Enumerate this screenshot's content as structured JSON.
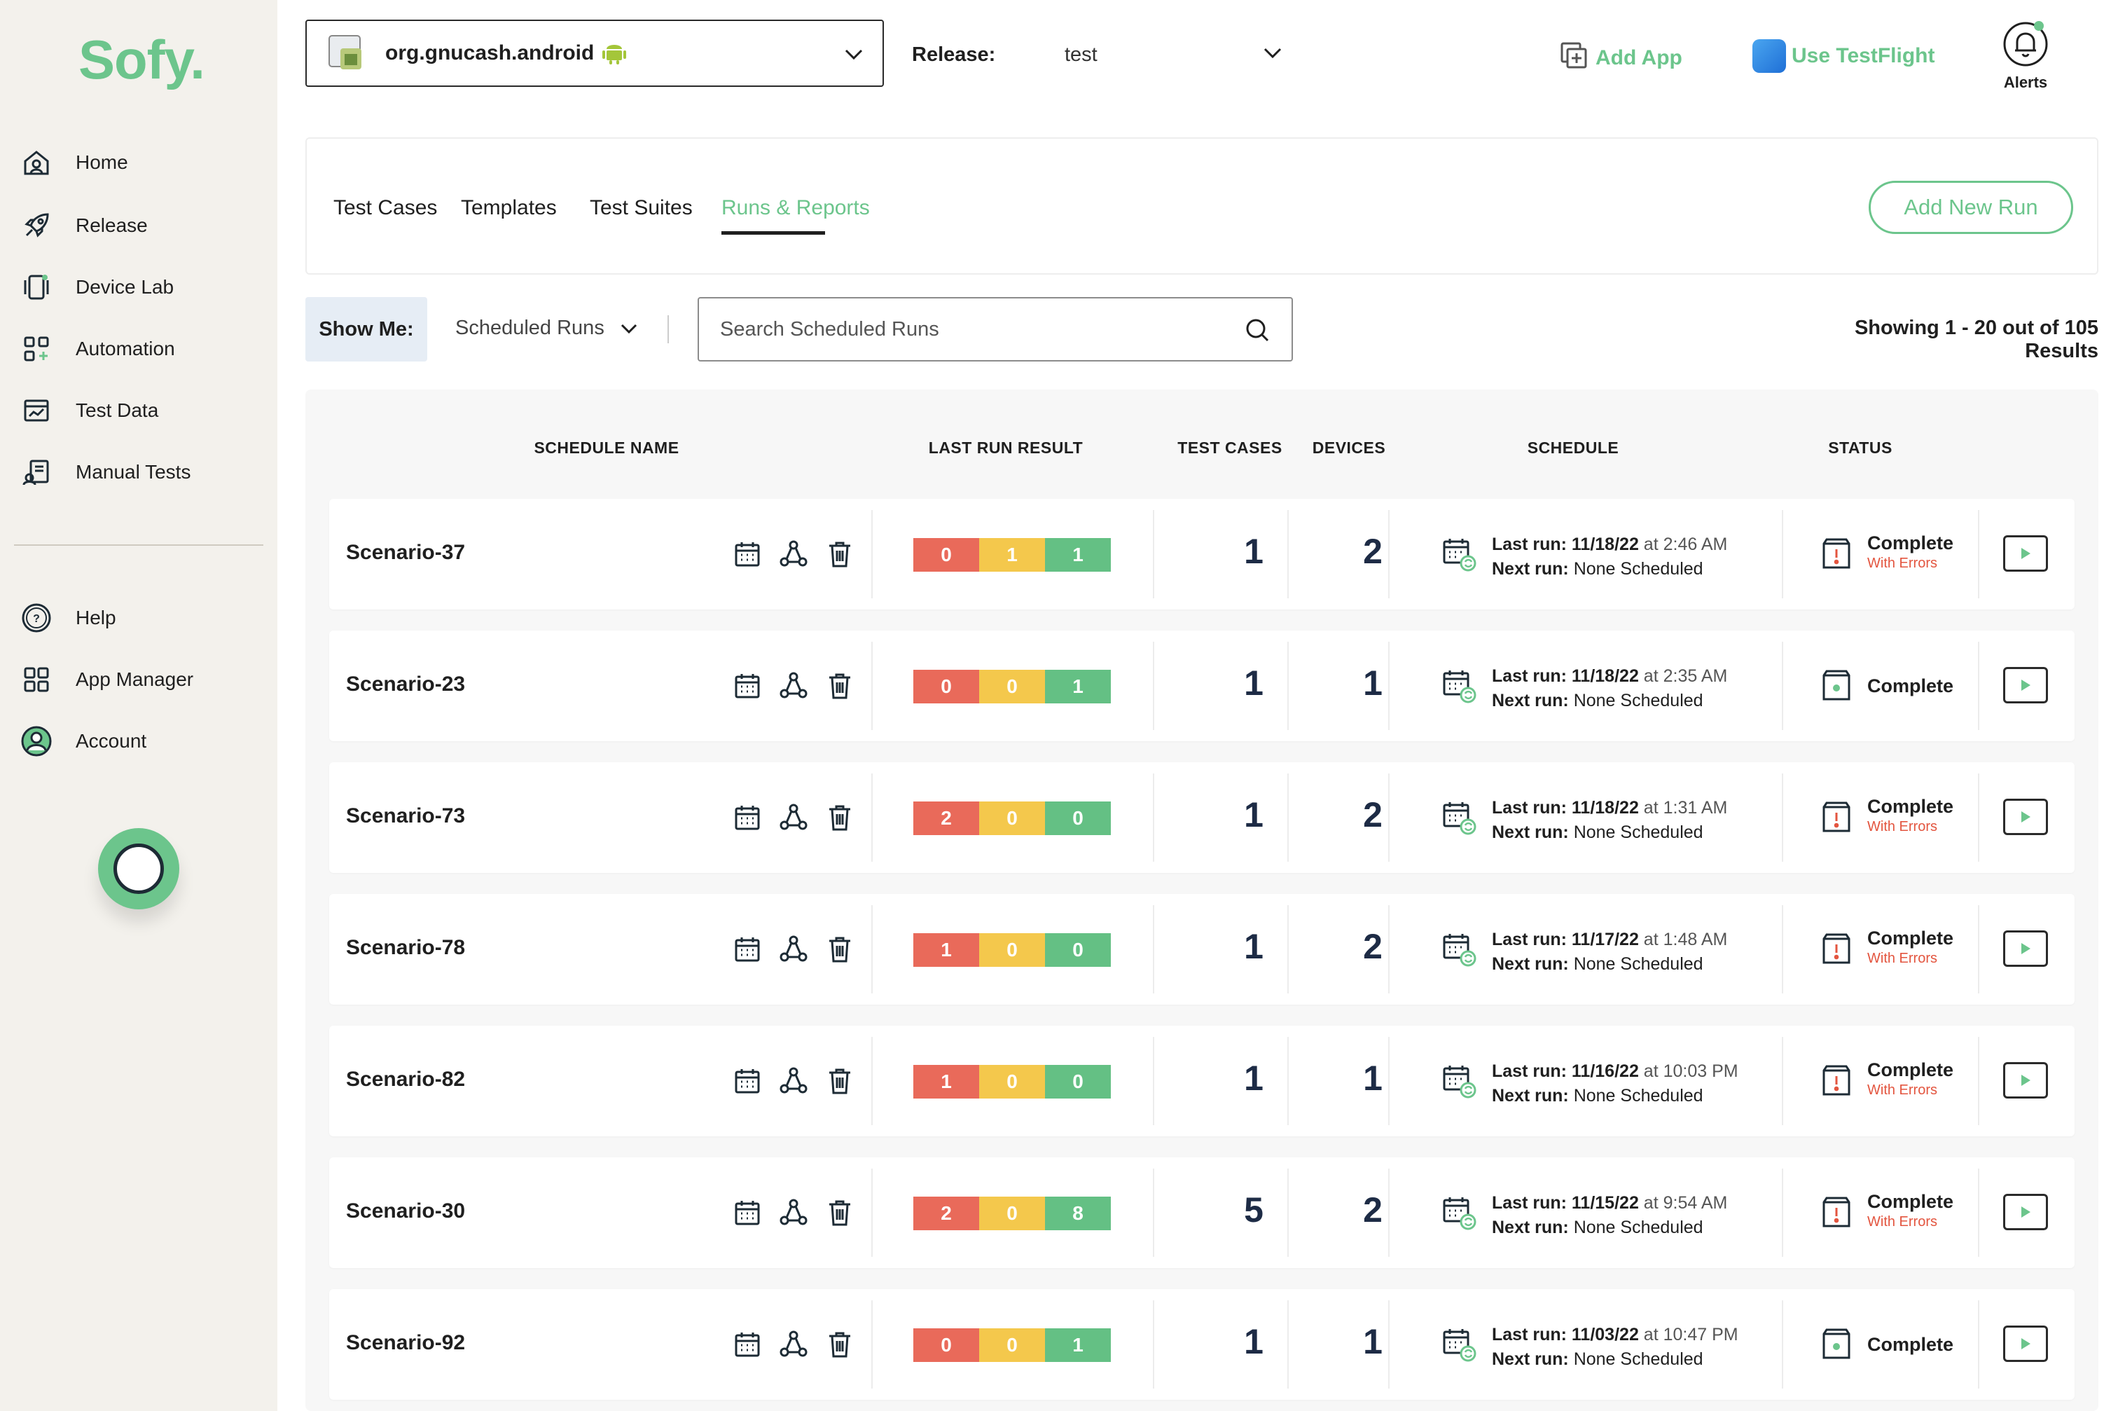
{
  "sidebar": {
    "logo": "Sofy.",
    "items": [
      {
        "label": "Home",
        "icon": "home-icon"
      },
      {
        "label": "Release",
        "icon": "rocket-icon"
      },
      {
        "label": "Device Lab",
        "icon": "device-icon"
      },
      {
        "label": "Automation",
        "icon": "automation-icon"
      },
      {
        "label": "Test Data",
        "icon": "test-data-icon"
      },
      {
        "label": "Manual Tests",
        "icon": "manual-tests-icon"
      }
    ],
    "bottom_items": [
      {
        "label": "Help",
        "icon": "help-icon"
      },
      {
        "label": "App Manager",
        "icon": "app-manager-icon"
      },
      {
        "label": "Account",
        "icon": "account-icon"
      }
    ]
  },
  "header": {
    "app_name": "org.gnucash.android",
    "release_label": "Release:",
    "release_value": "test",
    "add_app": "Add App",
    "use_testflight": "Use TestFlight",
    "alerts": "Alerts"
  },
  "tabs": {
    "items": [
      "Test Cases",
      "Templates",
      "Test Suites",
      "Runs & Reports"
    ],
    "active": "Runs & Reports",
    "add_new_run": "Add New Run"
  },
  "filters": {
    "show_me_label": "Show Me:",
    "show_me_value": "Scheduled Runs",
    "search_placeholder": "Search Scheduled Runs",
    "results": "Showing 1 - 20 out of 105 Results"
  },
  "table": {
    "headers": {
      "schedule_name": "SCHEDULE NAME",
      "last_run_result": "LAST RUN RESULT",
      "test_cases": "TEST CASES",
      "devices": "DEVICES",
      "schedule": "SCHEDULE",
      "status": "STATUS"
    },
    "rows": [
      {
        "name": "Scenario-37",
        "failed": "0",
        "warn": "1",
        "passed": "1",
        "test_cases": "1",
        "devices": "2",
        "last_run_label": "Last run:",
        "last_run_date": "11/18/22",
        "last_run_time": "at 2:46 AM",
        "next_run_label": "Next run:",
        "next_run": "None Scheduled",
        "status": "Complete",
        "status_sub": "With Errors"
      },
      {
        "name": "Scenario-23",
        "failed": "0",
        "warn": "0",
        "passed": "1",
        "test_cases": "1",
        "devices": "1",
        "last_run_label": "Last run:",
        "last_run_date": "11/18/22",
        "last_run_time": "at 2:35 AM",
        "next_run_label": "Next run:",
        "next_run": "None Scheduled",
        "status": "Complete",
        "status_sub": ""
      },
      {
        "name": "Scenario-73",
        "failed": "2",
        "warn": "0",
        "passed": "0",
        "test_cases": "1",
        "devices": "2",
        "last_run_label": "Last run:",
        "last_run_date": "11/18/22",
        "last_run_time": "at 1:31 AM",
        "next_run_label": "Next run:",
        "next_run": "None Scheduled",
        "status": "Complete",
        "status_sub": "With Errors"
      },
      {
        "name": "Scenario-78",
        "failed": "1",
        "warn": "0",
        "passed": "0",
        "test_cases": "1",
        "devices": "2",
        "last_run_label": "Last run:",
        "last_run_date": "11/17/22",
        "last_run_time": "at 1:48 AM",
        "next_run_label": "Next run:",
        "next_run": "None Scheduled",
        "status": "Complete",
        "status_sub": "With Errors"
      },
      {
        "name": "Scenario-82",
        "failed": "1",
        "warn": "0",
        "passed": "0",
        "test_cases": "1",
        "devices": "1",
        "last_run_label": "Last run:",
        "last_run_date": "11/16/22",
        "last_run_time": "at 10:03 PM",
        "next_run_label": "Next run:",
        "next_run": "None Scheduled",
        "status": "Complete",
        "status_sub": "With Errors"
      },
      {
        "name": "Scenario-30",
        "failed": "2",
        "warn": "0",
        "passed": "8",
        "test_cases": "5",
        "devices": "2",
        "last_run_label": "Last run:",
        "last_run_date": "11/15/22",
        "last_run_time": "at 9:54 AM",
        "next_run_label": "Next run:",
        "next_run": "None Scheduled",
        "status": "Complete",
        "status_sub": "With Errors"
      },
      {
        "name": "Scenario-92",
        "failed": "0",
        "warn": "0",
        "passed": "1",
        "test_cases": "1",
        "devices": "1",
        "last_run_label": "Last run:",
        "last_run_date": "11/03/22",
        "last_run_time": "at 10:47 PM",
        "next_run_label": "Next run:",
        "next_run": "None Scheduled",
        "status": "Complete",
        "status_sub": ""
      }
    ]
  },
  "colors": {
    "brand": "#6cc58c",
    "failed": "#e96a5a",
    "warning": "#f4c84c",
    "passed": "#64c084",
    "error_text": "#e3553f"
  }
}
